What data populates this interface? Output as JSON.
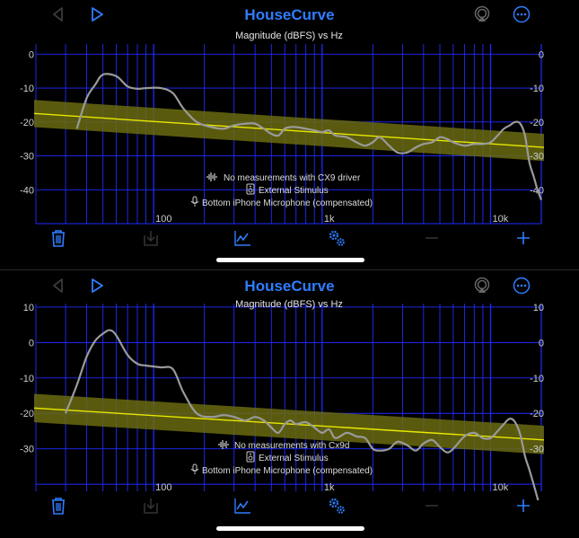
{
  "app_title": "HouseCurve",
  "colors": {
    "accent": "#2f7dff",
    "grid": "#1f2bff",
    "target": "#e8e800",
    "target_band": "#6a6a10",
    "curve": "#9a9a9a"
  },
  "icons": {
    "back": "chevron-left-icon",
    "play": "play-icon",
    "airplay": "airplay-icon",
    "more": "ellipsis-icon",
    "trash": "trash-icon",
    "export": "export-icon",
    "graph": "chart-line-icon",
    "settings": "gears-icon",
    "remove": "minus-icon",
    "add": "plus-icon"
  },
  "chart_data": [
    {
      "type": "line",
      "title": "Magnitude (dBFS) vs Hz",
      "x_scale": "log",
      "xlim": [
        20,
        20000
      ],
      "ylim": [
        -50,
        3
      ],
      "x_tick_labels": [
        {
          "value": 100,
          "label": "100"
        },
        {
          "value": 1000,
          "label": "1k"
        },
        {
          "value": 10000,
          "label": "10k"
        }
      ],
      "y_tick_labels": [
        {
          "value": 0,
          "label": "0"
        },
        {
          "value": -10,
          "label": "-10"
        },
        {
          "value": -20,
          "label": "-20"
        },
        {
          "value": -30,
          "label": "-30"
        },
        {
          "value": -40,
          "label": "-40"
        }
      ],
      "grid": true,
      "legend": [
        {
          "icon": "waveform-icon",
          "text": "No measurements with CX9 driver"
        },
        {
          "icon": "speaker-icon",
          "text": "External Stimulus"
        },
        {
          "icon": "microphone-icon",
          "text": "Bottom iPhone Microphone (compensated)"
        }
      ],
      "target": {
        "x": [
          20,
          20000
        ],
        "y": [
          -17.5,
          -27.5
        ],
        "band": 4
      },
      "series": [
        {
          "x": [
            35,
            40,
            45,
            50,
            60,
            70,
            80,
            90,
            110,
            130,
            150,
            180,
            220,
            260,
            300,
            350,
            400,
            450,
            500,
            550,
            600,
            650,
            700,
            800,
            900,
            1000,
            1100,
            1200,
            1400,
            1600,
            1800,
            2000,
            2200,
            2500,
            2800,
            3200,
            3600,
            4000,
            4500,
            5000,
            5500,
            6000,
            7000,
            8000,
            9000,
            10000,
            11000,
            12000,
            13000,
            14000,
            15000,
            16000,
            17000,
            18000,
            19000,
            20000
          ],
          "y": [
            -22,
            -13,
            -9,
            -6,
            -6.5,
            -9.5,
            -10.2,
            -10,
            -10,
            -11.5,
            -16,
            -20,
            -21.5,
            -22,
            -21,
            -20.5,
            -20.5,
            -22,
            -23.5,
            -24,
            -22,
            -21.5,
            -21.5,
            -22,
            -22.5,
            -23,
            -22.5,
            -24,
            -24.5,
            -26,
            -27,
            -26,
            -24.5,
            -27,
            -29,
            -29,
            -27.5,
            -26.5,
            -26,
            -24.5,
            -25,
            -26,
            -27,
            -26.5,
            -26.5,
            -26,
            -24,
            -22,
            -21,
            -20,
            -20.5,
            -24,
            -32,
            -36,
            -40,
            -43
          ]
        }
      ]
    },
    {
      "type": "line",
      "title": "Magnitude (dBFS) vs Hz",
      "x_scale": "log",
      "xlim": [
        20,
        20000
      ],
      "ylim": [
        -42,
        11
      ],
      "x_tick_labels": [
        {
          "value": 100,
          "label": "100"
        },
        {
          "value": 1000,
          "label": "1k"
        },
        {
          "value": 10000,
          "label": "10k"
        }
      ],
      "y_tick_labels": [
        {
          "value": 10,
          "label": "10"
        },
        {
          "value": 0,
          "label": "0"
        },
        {
          "value": -10,
          "label": "-10"
        },
        {
          "value": -20,
          "label": "-20"
        },
        {
          "value": -30,
          "label": "-30"
        }
      ],
      "grid": true,
      "legend": [
        {
          "icon": "waveform-icon",
          "text": "No measurements with Cx9d"
        },
        {
          "icon": "speaker-icon",
          "text": "External Stimulus"
        },
        {
          "icon": "microphone-icon",
          "text": "Bottom iPhone Microphone (compensated)"
        }
      ],
      "target": {
        "x": [
          20,
          20000
        ],
        "y": [
          -18.5,
          -27.5
        ],
        "band": 4
      },
      "series": [
        {
          "x": [
            30,
            35,
            40,
            45,
            50,
            55,
            60,
            70,
            80,
            90,
            110,
            130,
            150,
            180,
            220,
            260,
            300,
            350,
            400,
            450,
            500,
            550,
            600,
            650,
            700,
            800,
            900,
            1000,
            1100,
            1200,
            1400,
            1600,
            1800,
            2000,
            2200,
            2500,
            2800,
            3200,
            3600,
            4000,
            4500,
            5000,
            5500,
            6000,
            7000,
            8000,
            9000,
            10000,
            11000,
            12000,
            13000,
            14000,
            15000,
            16000,
            17000,
            18000,
            19000,
            20000
          ],
          "y": [
            -20,
            -12,
            -4,
            0.5,
            2.5,
            3.5,
            2,
            -3.5,
            -6,
            -6.5,
            -7,
            -7.5,
            -14,
            -20,
            -21,
            -20.5,
            -21,
            -22,
            -21,
            -22,
            -24,
            -25.5,
            -23,
            -22,
            -23,
            -22.5,
            -24,
            -25.5,
            -24.5,
            -27,
            -25.5,
            -26.5,
            -27,
            -30,
            -30.5,
            -30,
            -28,
            -29,
            -30.5,
            -28.5,
            -27.5,
            -29.5,
            -31,
            -30,
            -26.5,
            -25.5,
            -27,
            -27,
            -25,
            -23,
            -21.5,
            -22.5,
            -26,
            -32,
            -36,
            -40,
            -44,
            -48
          ]
        }
      ]
    }
  ]
}
